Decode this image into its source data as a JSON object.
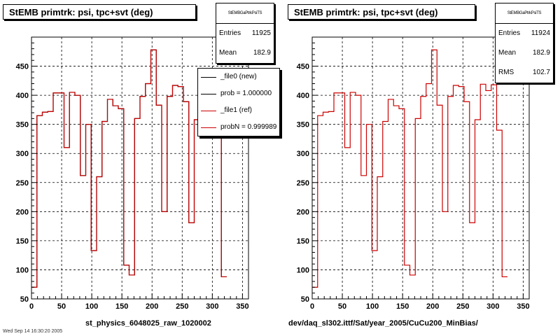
{
  "chart_data": [
    {
      "type": "histogram",
      "title": "StEMB primtrk: psi, tpc+svt (deg)",
      "xlabel": "st_physics_6048025_raw_1020002",
      "ylabel": "",
      "xlim": [
        0,
        360
      ],
      "ylim": [
        50,
        500
      ],
      "xticks": [
        0,
        50,
        100,
        150,
        200,
        250,
        300,
        350
      ],
      "yticks": [
        50,
        100,
        150,
        200,
        250,
        300,
        350,
        400,
        450
      ],
      "grid": true,
      "bin_width": 9,
      "stats": {
        "name": "StEMBGaPtrkPsiTS",
        "entries_label": "Entries",
        "entries": "11925",
        "mean_label": "Mean",
        "mean": "182.9"
      },
      "legend": {
        "placement": "top-right",
        "entries": [
          {
            "label": "_file0 (new)",
            "color": "#000000"
          },
          {
            "label": "prob = 1.000000",
            "color": "#000000"
          },
          {
            "label": "_file1 (ref)",
            "color": "#cc0000"
          },
          {
            "label": "probN = 0.999989",
            "color": "#cc0000"
          }
        ]
      },
      "series": [
        {
          "name": "_file0 (new)",
          "color": "#000000",
          "values": [
            70,
            365,
            371,
            372,
            404,
            404,
            310,
            405,
            400,
            262,
            350,
            133,
            260,
            355,
            393,
            382,
            377,
            108,
            91,
            360,
            398,
            420,
            478,
            383,
            200,
            398,
            417,
            415,
            389,
            181,
            358,
            419,
            408,
            418,
            340,
            88
          ]
        },
        {
          "name": "_file1 (ref)",
          "color": "#cc0000",
          "values": [
            70,
            365,
            371,
            372,
            404,
            404,
            310,
            405,
            400,
            262,
            350,
            133,
            260,
            355,
            393,
            382,
            377,
            108,
            91,
            360,
            398,
            420,
            478,
            383,
            200,
            398,
            417,
            415,
            389,
            181,
            358,
            419,
            408,
            418,
            340,
            88
          ]
        }
      ]
    },
    {
      "type": "histogram",
      "title": "StEMB primtrk: psi, tpc+svt (deg)",
      "xlabel": "dev/daq_sl302.ittf/Sat/year_2005/CuCu200_MinBias/",
      "ylabel": "",
      "xlim": [
        0,
        360
      ],
      "ylim": [
        50,
        500
      ],
      "xticks": [
        0,
        50,
        100,
        150,
        200,
        250,
        300,
        350
      ],
      "yticks": [
        50,
        100,
        150,
        200,
        250,
        300,
        350,
        400,
        450
      ],
      "grid": true,
      "bin_width": 9,
      "stats": {
        "name": "StEMBGaPtrkPsiTS",
        "entries_label": "Entries",
        "entries": "11924",
        "mean_label": "Mean",
        "mean": "182.9",
        "rms_label": "RMS",
        "rms": "102.7"
      },
      "series": [
        {
          "name": "",
          "color": "#cc0000",
          "values": [
            70,
            365,
            371,
            372,
            404,
            404,
            310,
            405,
            400,
            262,
            350,
            133,
            260,
            355,
            393,
            382,
            377,
            108,
            91,
            360,
            398,
            420,
            478,
            383,
            200,
            398,
            417,
            415,
            389,
            181,
            358,
            419,
            408,
            418,
            340,
            88
          ]
        }
      ]
    }
  ],
  "footer": "Wed Sep 14 16:30:20 2005"
}
